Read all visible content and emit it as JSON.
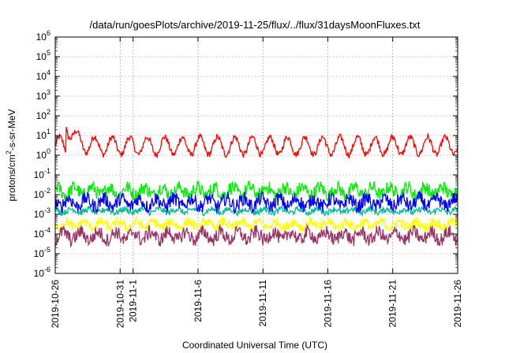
{
  "chart_data": {
    "type": "line",
    "title": "/data/run/goesPlots/archive/2019-11-25/flux/../flux/31daysMoonFluxes.txt",
    "xlabel": "Coordinated Universal Time (UTC)",
    "ylabel": {
      "parts": [
        "protons/cm",
        "2",
        "-s-sr-MeV"
      ]
    },
    "y_scale": "log",
    "ylim": [
      1e-06,
      1000000.0
    ],
    "y_ticks": [
      {
        "base": "10",
        "exp": "-6",
        "value": 1e-06
      },
      {
        "base": "10",
        "exp": "-5",
        "value": 1e-05
      },
      {
        "base": "10",
        "exp": "-4",
        "value": 0.0001
      },
      {
        "base": "10",
        "exp": "-3",
        "value": 0.001
      },
      {
        "base": "10",
        "exp": "-2",
        "value": 0.01
      },
      {
        "base": "10",
        "exp": "-1",
        "value": 0.1
      },
      {
        "base": "10",
        "exp": "0",
        "value": 1
      },
      {
        "base": "10",
        "exp": "1",
        "value": 10
      },
      {
        "base": "10",
        "exp": "2",
        "value": 100
      },
      {
        "base": "10",
        "exp": "3",
        "value": 1000
      },
      {
        "base": "10",
        "exp": "4",
        "value": 10000
      },
      {
        "base": "10",
        "exp": "5",
        "value": 100000
      },
      {
        "base": "10",
        "exp": "6",
        "value": 1000000
      }
    ],
    "xlim": [
      "2019-10-26",
      "2019-11-26"
    ],
    "x_ticks": [
      {
        "label": "2019-10-26",
        "day": 0
      },
      {
        "label": "2019-10-31",
        "day": 5
      },
      {
        "label": "2019-11-1",
        "day": 6
      },
      {
        "label": "2019-11-6",
        "day": 11
      },
      {
        "label": "2019-11-11",
        "day": 16
      },
      {
        "label": "2019-11-16",
        "day": 21
      },
      {
        "label": "2019-11-21",
        "day": 26
      },
      {
        "label": "2019-11-26",
        "day": 31
      }
    ],
    "grid": true,
    "series": [
      {
        "color": "#ff0000",
        "baseline": 3.0,
        "spread": 0.45,
        "spike_day": 0.8,
        "spike_value": 60
      },
      {
        "color": "#00ee00",
        "baseline": 0.015,
        "spread": 0.35
      },
      {
        "color": "#00bb99",
        "baseline": 0.0015,
        "spread": 0.15
      },
      {
        "color": "#0000ff",
        "baseline": 0.004,
        "spread": 0.35
      },
      {
        "color": "#ffff00",
        "baseline": 0.0003,
        "spread": 0.25
      },
      {
        "color": "#993366",
        "baseline": 8e-05,
        "spread": 0.35
      }
    ]
  }
}
